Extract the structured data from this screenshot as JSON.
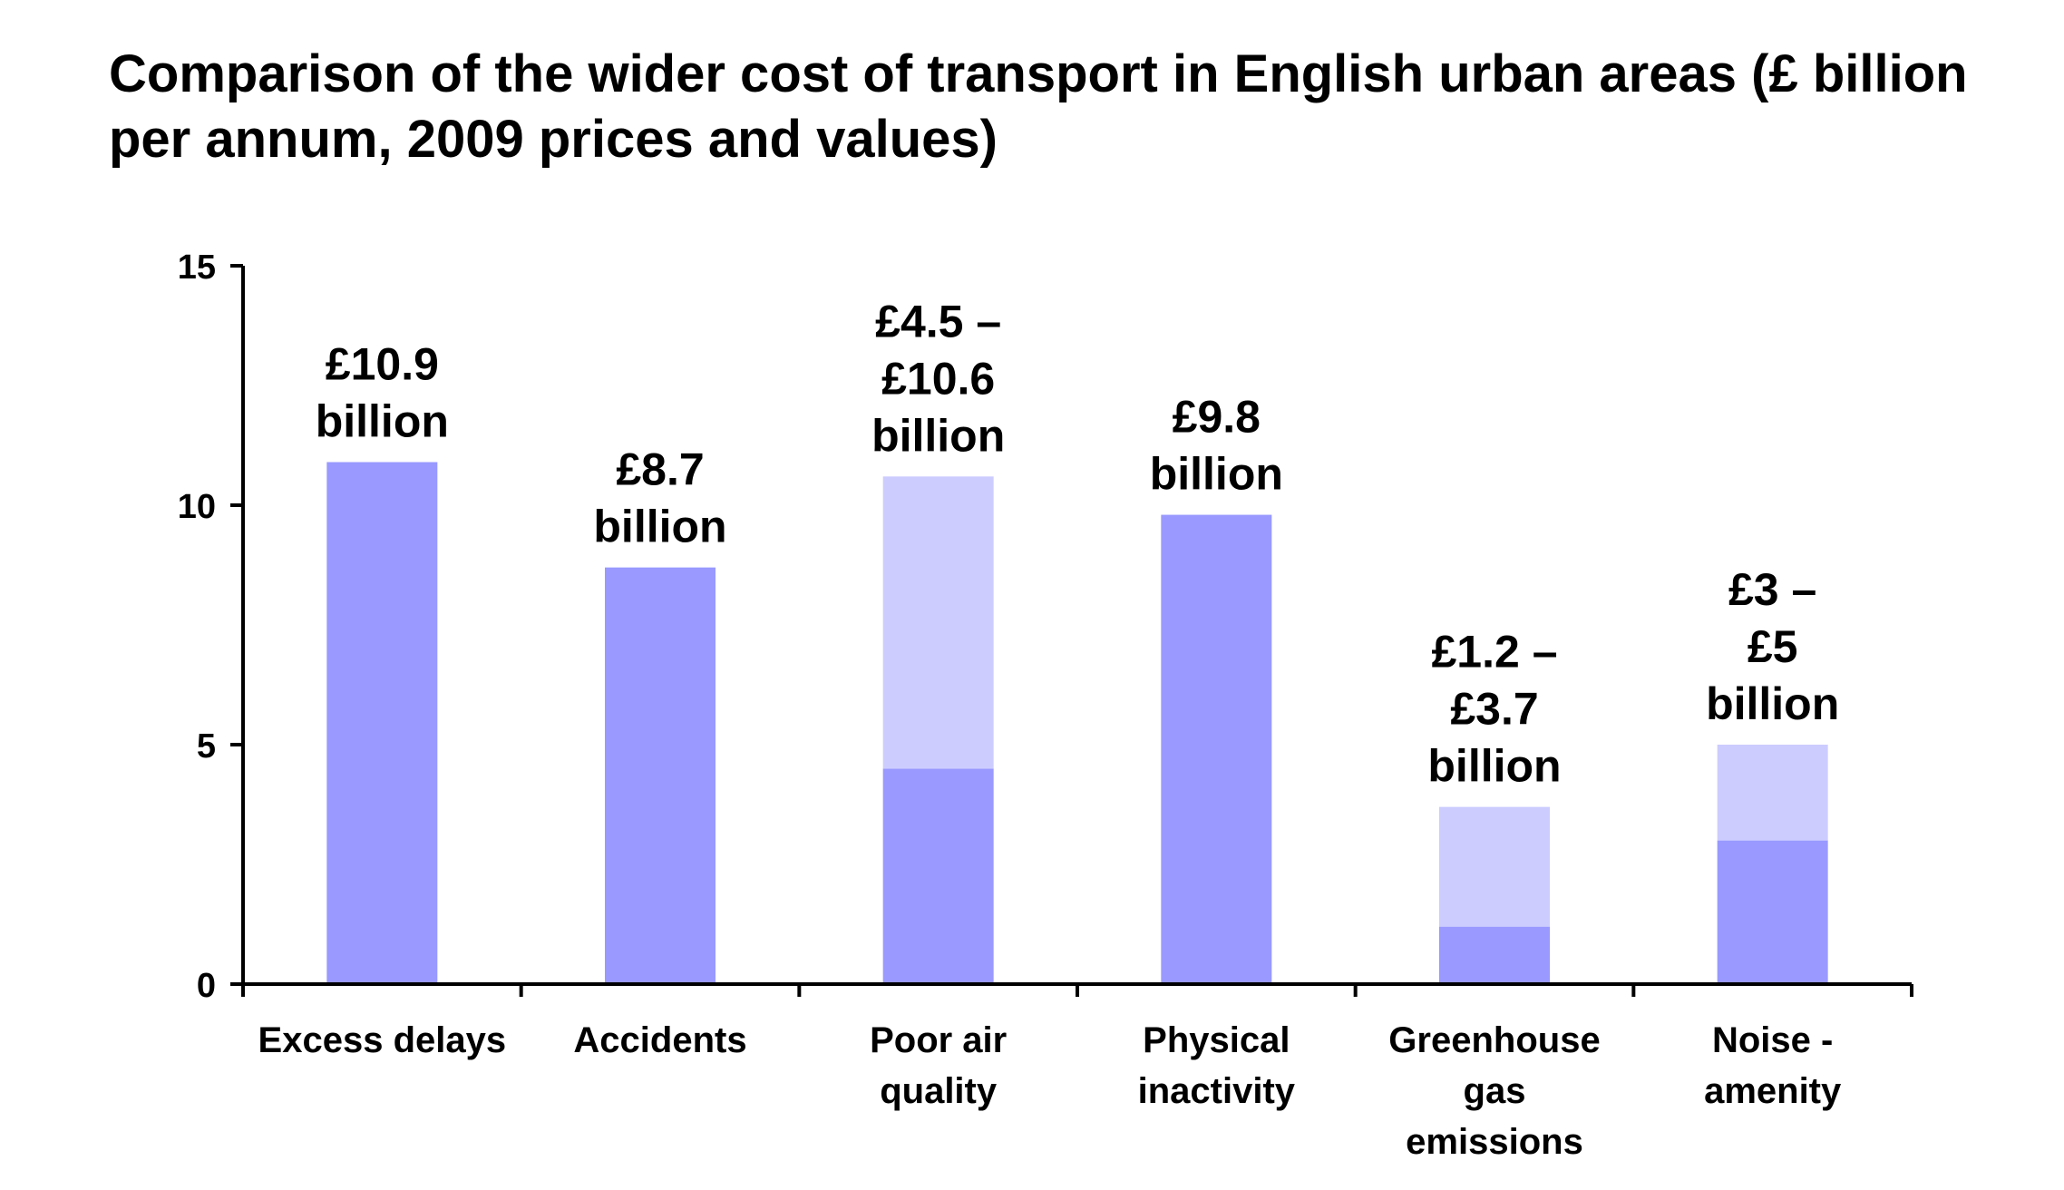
{
  "chart_data": {
    "type": "bar",
    "title": "Comparison of the wider cost of transport in English urban areas (£ billion per annum, 2009 prices and values)",
    "xlabel": "",
    "ylabel": "",
    "ylim": [
      0,
      15
    ],
    "yticks": [
      "0",
      "5",
      "10",
      "15"
    ],
    "grid": false,
    "legend": "none",
    "categories": [
      [
        "Excess delays"
      ],
      [
        "Accidents"
      ],
      [
        "Poor air",
        "quality"
      ],
      [
        "Physical",
        "inactivity"
      ],
      [
        "Greenhouse",
        "gas",
        "emissions"
      ],
      [
        "Noise -",
        "amenity"
      ]
    ],
    "series": [
      {
        "values": [
          10.9,
          8.7,
          4.5,
          9.8,
          1.2,
          3.0
        ]
      },
      {
        "values": [
          0,
          0,
          6.1,
          0,
          2.5,
          2.0
        ]
      }
    ],
    "data_labels": [
      [
        "£10.9",
        "billion"
      ],
      [
        "£8.7",
        "billion"
      ],
      [
        "£4.5 –",
        "£10.6",
        "billion"
      ],
      [
        "£9.8",
        "billion"
      ],
      [
        "£1.2 –",
        "£3.7",
        "billion"
      ],
      [
        "£3 –",
        "£5",
        "billion"
      ]
    ],
    "colors": {
      "lower": "#9999ff",
      "upper": "#ccccff",
      "axis": "#000000"
    }
  }
}
